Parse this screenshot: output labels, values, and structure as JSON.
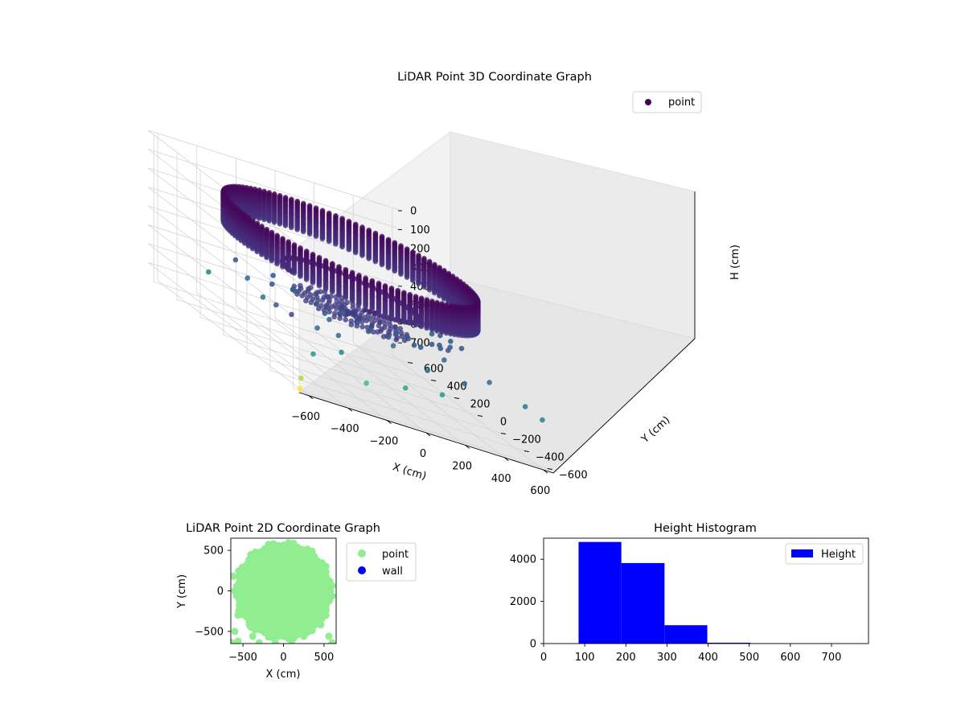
{
  "chart_data": [
    {
      "type": "scatter",
      "projection": "3d",
      "title": "LiDAR Point 3D Coordinate Graph",
      "xlabel": "X (cm)",
      "ylabel": "Y (cm)",
      "zlabel": "H (cm)",
      "xlim": [
        -650,
        650
      ],
      "ylim": [
        -650,
        650
      ],
      "zlim": [
        780,
        0
      ],
      "x_ticks": [
        -600,
        -400,
        -200,
        0,
        200,
        400,
        600
      ],
      "y_ticks": [
        -600,
        -400,
        -200,
        0,
        200,
        400,
        600
      ],
      "z_ticks": [
        0,
        100,
        200,
        300,
        400,
        500,
        600,
        700
      ],
      "z_axis_inverted": true,
      "colormap": "viridis",
      "legend": {
        "labels": [
          "point"
        ],
        "position": "top-right"
      },
      "grid": true,
      "structure": {
        "wall_radius_cm": 560,
        "wall_height_range_cm": [
          100,
          250
        ],
        "inner_ring_radius_cm": 300,
        "inner_ring_height_cm": 330,
        "floor_radius_cm": 260,
        "floor_height_cm": 450
      },
      "scattered_points": [
        {
          "x": -600,
          "y": -500,
          "h": 420
        },
        {
          "x": -560,
          "y": -300,
          "h": 450
        },
        {
          "x": -520,
          "y": -120,
          "h": 480
        },
        {
          "x": -480,
          "y": 80,
          "h": 460
        },
        {
          "x": -440,
          "y": 250,
          "h": 430
        },
        {
          "x": -620,
          "y": 180,
          "h": 520
        },
        {
          "x": -560,
          "y": -620,
          "h": 560
        },
        {
          "x": -380,
          "y": -560,
          "h": 520
        },
        {
          "x": -300,
          "y": -400,
          "h": 480
        },
        {
          "x": -240,
          "y": -220,
          "h": 460
        },
        {
          "x": -160,
          "y": -80,
          "h": 440
        },
        {
          "x": -80,
          "y": 60,
          "h": 420
        },
        {
          "x": 40,
          "y": -300,
          "h": 470
        },
        {
          "x": 120,
          "y": -460,
          "h": 500
        },
        {
          "x": 200,
          "y": -150,
          "h": 440
        },
        {
          "x": 300,
          "y": -300,
          "h": 460
        },
        {
          "x": 380,
          "y": -200,
          "h": 430
        },
        {
          "x": 460,
          "y": -420,
          "h": 470
        },
        {
          "x": 520,
          "y": -80,
          "h": 430
        },
        {
          "x": 560,
          "y": -560,
          "h": 500
        },
        {
          "x": 600,
          "y": -640,
          "h": 520
        },
        {
          "x": 100,
          "y": -620,
          "h": 560
        },
        {
          "x": -100,
          "y": -640,
          "h": 580
        },
        {
          "x": -640,
          "y": -650,
          "h": 700
        },
        {
          "x": -640,
          "y": -640,
          "h": 760
        },
        {
          "x": -300,
          "y": -640,
          "h": 620
        },
        {
          "x": 250,
          "y": -560,
          "h": 480
        },
        {
          "x": -420,
          "y": -420,
          "h": 470
        },
        {
          "x": 150,
          "y": 40,
          "h": 420
        },
        {
          "x": 300,
          "y": 60,
          "h": 420
        }
      ]
    },
    {
      "type": "scatter",
      "title": "LiDAR Point 2D Coordinate Graph",
      "xlabel": "X (cm)",
      "ylabel": "Y (cm)",
      "xlim": [
        -650,
        650
      ],
      "ylim": [
        -650,
        650
      ],
      "x_ticks": [
        -500,
        0,
        500
      ],
      "y_ticks": [
        -500,
        0,
        500
      ],
      "series": [
        {
          "name": "point",
          "color": "#90ee90"
        },
        {
          "name": "wall",
          "color": "#0000ff"
        }
      ],
      "disc_radius_cm": 590,
      "legend": {
        "position": "outside-right"
      }
    },
    {
      "type": "bar",
      "title": "Height Histogram",
      "xlabel": "",
      "ylabel": "",
      "xlim": [
        0,
        790
      ],
      "ylim": [
        0,
        5000
      ],
      "x_ticks": [
        0,
        100,
        200,
        300,
        400,
        500,
        600,
        700
      ],
      "y_ticks": [
        0,
        2000,
        4000
      ],
      "bins": [
        {
          "from": 85,
          "to": 189,
          "count": 4820
        },
        {
          "from": 189,
          "to": 294,
          "count": 3820
        },
        {
          "from": 294,
          "to": 398,
          "count": 870
        },
        {
          "from": 398,
          "to": 503,
          "count": 40
        },
        {
          "from": 503,
          "to": 607,
          "count": 4
        },
        {
          "from": 607,
          "to": 712,
          "count": 2
        },
        {
          "from": 712,
          "to": 777,
          "count": 1
        }
      ],
      "color": "#0000ff",
      "legend": {
        "labels": [
          "Height"
        ],
        "position": "top-right"
      }
    }
  ]
}
